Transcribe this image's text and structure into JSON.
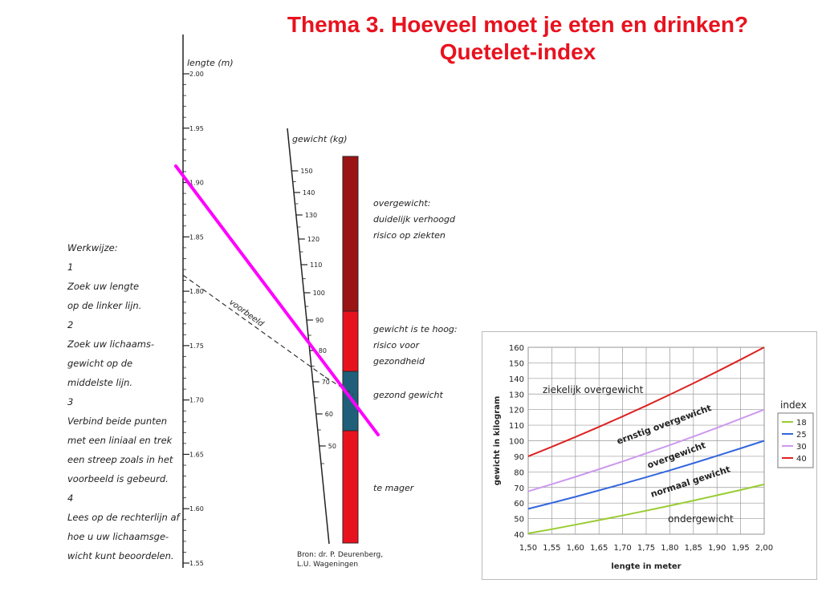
{
  "title_line1": "Thema 3. Hoeveel moet je eten en drinken?",
  "title_line2": "Quetelet-index",
  "nomogram": {
    "length_axis_label": "lengte (m)",
    "length_ticks": [
      "2.00",
      "1.95",
      "1.90",
      "1.85",
      "1.80",
      "1.75",
      "1.70",
      "1.65",
      "1.60",
      "1.55"
    ],
    "weight_axis_label": "gewicht (kg)",
    "weight_ticks": [
      "150",
      "140",
      "130",
      "120",
      "110",
      "100",
      "90",
      "80",
      "70",
      "60",
      "50"
    ],
    "example_label": "voorbeeld",
    "zones": [
      {
        "label_lines": [
          "overgewicht:",
          "duidelijk verhoogd",
          "risico op ziekten"
        ],
        "color": "#9b1414"
      },
      {
        "label_lines": [
          "gewicht is te hoog:",
          "risico voor",
          "gezondheid"
        ],
        "color": "#e8121e"
      },
      {
        "label_lines": [
          "gezond gewicht"
        ],
        "color": "#1f5f7a"
      },
      {
        "label_lines": [
          "te mager"
        ],
        "color": "#e8121e"
      }
    ],
    "source_lines": [
      "Bron: dr. P. Deurenberg,",
      "L.U. Wageningen"
    ],
    "instructions": [
      "Werkwijze:",
      "1",
      "Zoek uw lengte",
      "op de linker lijn.",
      "2",
      "Zoek uw lichaams-",
      "gewicht op de",
      "middelste lijn.",
      "3",
      "Verbind beide punten",
      "met een liniaal en trek",
      "een streep zoals in het",
      "voorbeeld is gebeurd.",
      "4",
      "Lees op de rechterlijn af",
      "hoe u uw lichaamsge-",
      "wicht kunt beoordelen."
    ],
    "highlight_line_color": "#ff00ff"
  },
  "chart_data": {
    "type": "line",
    "xlabel": "lengte in meter",
    "ylabel": "gewicht in kilogram",
    "xlim": [
      1.5,
      2.0
    ],
    "ylim": [
      40,
      160
    ],
    "x_tick_labels": [
      "1,50",
      "1,55",
      "1,60",
      "1,65",
      "1,70",
      "1,75",
      "1,80",
      "1,85",
      "1,90",
      "1,95",
      "2,00"
    ],
    "y_tick_labels": [
      "40",
      "50",
      "60",
      "70",
      "80",
      "90",
      "100",
      "110",
      "120",
      "130",
      "140",
      "150",
      "160"
    ],
    "grid": true,
    "legend_title": "index",
    "legend_placement": "right",
    "x": [
      1.5,
      1.55,
      1.6,
      1.65,
      1.7,
      1.75,
      1.8,
      1.85,
      1.9,
      1.95,
      2.0
    ],
    "series": [
      {
        "name": "18",
        "color": "#99cc33",
        "values": [
          40.5,
          43.2,
          46.1,
          49.0,
          52.0,
          55.1,
          58.3,
          61.6,
          65.0,
          68.4,
          72.0
        ]
      },
      {
        "name": "25",
        "color": "#3366dd",
        "values": [
          56.3,
          60.1,
          64.0,
          68.1,
          72.3,
          76.6,
          81.0,
          85.6,
          90.3,
          95.1,
          100.0
        ]
      },
      {
        "name": "30",
        "color": "#cc99ee",
        "values": [
          67.5,
          72.1,
          76.8,
          81.7,
          86.7,
          91.9,
          97.2,
          102.7,
          108.3,
          114.1,
          120.0
        ]
      },
      {
        "name": "40",
        "color": "#dd2222",
        "values": [
          90.0,
          96.1,
          102.4,
          108.9,
          115.6,
          122.5,
          129.6,
          136.9,
          144.4,
          152.1,
          160.0
        ]
      }
    ],
    "region_labels": [
      "ziekelijk overgewicht",
      "ernstig overgewicht",
      "overgewicht",
      "normaal gewicht",
      "ondergewicht"
    ]
  }
}
